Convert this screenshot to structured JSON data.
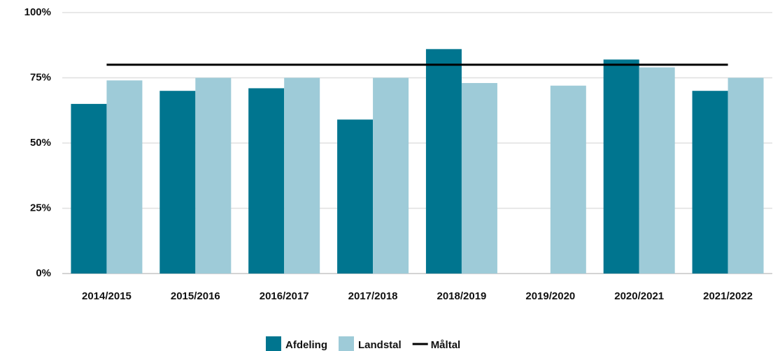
{
  "chart_data": {
    "type": "bar",
    "categories": [
      "2014/2015",
      "2015/2016",
      "2016/2017",
      "2017/2018",
      "2018/2019",
      "2019/2020",
      "2020/2021",
      "2021/2022"
    ],
    "series": [
      {
        "name": "Afdeling",
        "color": "#00758f",
        "values": [
          65,
          70,
          71,
          59,
          86,
          null,
          82,
          70
        ]
      },
      {
        "name": "Landstal",
        "color": "#9ecbd8",
        "values": [
          74,
          75,
          75,
          75,
          73,
          72,
          79,
          75
        ]
      },
      {
        "name": "Måltal",
        "color": "#000000",
        "type": "line",
        "values": [
          80,
          80,
          80,
          80,
          80,
          80,
          80,
          80
        ]
      }
    ],
    "ylim": [
      0,
      100
    ],
    "yticks": [
      {
        "value": 0,
        "label": "0%"
      },
      {
        "value": 25,
        "label": "25%"
      },
      {
        "value": 50,
        "label": "50%"
      },
      {
        "value": 75,
        "label": "75%"
      },
      {
        "value": 100,
        "label": "100%"
      }
    ],
    "grid": true,
    "legend": "bottom"
  }
}
